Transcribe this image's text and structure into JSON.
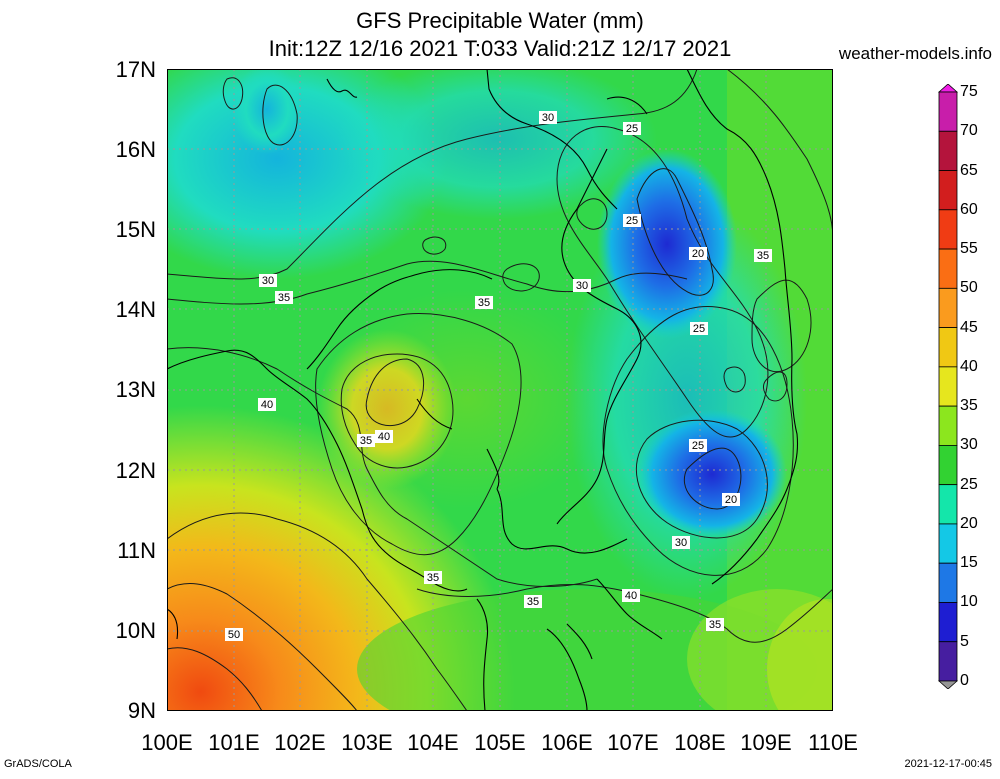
{
  "title": {
    "line1": "GFS Precipitable Water (mm)",
    "line2": "Init:12Z 12/16 2021 T:033 Valid:21Z 12/17 2021"
  },
  "brand": "weather-models.info",
  "footer": {
    "left": "GrADS/COLA",
    "right": "2021-12-17-00:45"
  },
  "axes": {
    "lat_labels": [
      "17N",
      "16N",
      "15N",
      "14N",
      "13N",
      "12N",
      "11N",
      "10N",
      "9N"
    ],
    "lon_labels": [
      "100E",
      "101E",
      "102E",
      "103E",
      "104E",
      "105E",
      "106E",
      "107E",
      "108E",
      "109E",
      "110E"
    ]
  },
  "colorbar": {
    "levels": [
      "75",
      "70",
      "65",
      "60",
      "55",
      "50",
      "45",
      "40",
      "35",
      "30",
      "25",
      "20",
      "15",
      "10",
      "5",
      "0"
    ],
    "colors": [
      "#f01ee6",
      "#c81eaa",
      "#b4143c",
      "#d21e1e",
      "#f03c14",
      "#fa6e14",
      "#fa9b1e",
      "#f0c814",
      "#e6e61e",
      "#8ce61e",
      "#32d232",
      "#14e6aa",
      "#14c8e6",
      "#1e78e6",
      "#1e1ed2",
      "#461ea0",
      "#969696"
    ]
  },
  "contour_labels": [
    "30",
    "25",
    "25",
    "20",
    "35",
    "25",
    "30",
    "35",
    "30",
    "35",
    "40",
    "35",
    "40",
    "25",
    "20",
    "30",
    "35",
    "35",
    "40",
    "35",
    "50"
  ]
}
